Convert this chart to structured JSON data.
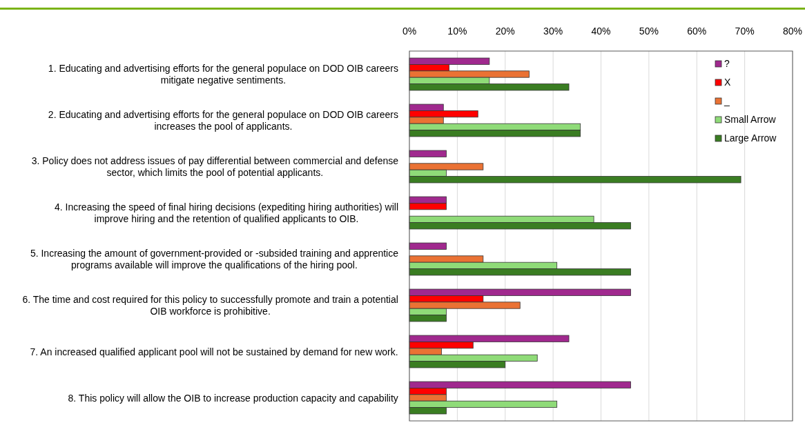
{
  "chart_data": {
    "type": "bar",
    "orientation": "horizontal",
    "categories": [
      "1. Educating and advertising efforts for the general populace on DOD OIB careers mitigate negative sentiments.",
      "2. Educating and advertising efforts for the general populace on DOD OIB careers increases the pool of applicants.",
      "3. Policy does not address issues of pay differential between commercial and defense sector, which limits the pool of potential applicants.",
      "4. Increasing the speed of final hiring decisions (expediting hiring authorities) will improve hiring and the retention of qualified applicants to OIB.",
      "5. Increasing the amount of government-provided or -subsided training and apprentice programs available will improve the qualifications of the hiring pool.",
      "6. The time and cost required for this policy to successfully promote and train a potential OIB workforce is prohibitive.",
      "7. An increased qualified applicant pool will not be sustained by demand for new work.",
      "8. This policy will allow the OIB to increase production capacity and capability"
    ],
    "series": [
      {
        "name": "?",
        "color": "#a0298e",
        "values": [
          16.7,
          7.1,
          7.7,
          7.7,
          7.7,
          46.2,
          33.3,
          46.2
        ]
      },
      {
        "name": "X",
        "color": "#ff0000",
        "values": [
          8.3,
          14.3,
          0,
          7.7,
          0,
          15.4,
          13.3,
          7.7
        ]
      },
      {
        "name": "_",
        "color": "#ea7234",
        "values": [
          25,
          7.1,
          15.4,
          0,
          15.4,
          23.1,
          6.7,
          7.7
        ]
      },
      {
        "name": "Small Arrow",
        "color": "#8fdb78",
        "values": [
          16.7,
          35.7,
          7.7,
          38.5,
          30.8,
          7.7,
          26.7,
          30.8
        ]
      },
      {
        "name": "Large Arrow",
        "color": "#3a7d22",
        "values": [
          33.3,
          35.7,
          69.2,
          46.2,
          46.2,
          7.7,
          20,
          7.7
        ]
      }
    ],
    "xlim": [
      0,
      80
    ],
    "xticks": [
      {
        "value": 0,
        "label": "0%"
      },
      {
        "value": 10,
        "label": "10%"
      },
      {
        "value": 20,
        "label": "20%"
      },
      {
        "value": 30,
        "label": "30%"
      },
      {
        "value": 40,
        "label": "40%"
      },
      {
        "value": 50,
        "label": "50%"
      },
      {
        "value": 60,
        "label": "60%"
      },
      {
        "value": 70,
        "label": "70%"
      },
      {
        "value": 80,
        "label": "80%"
      }
    ],
    "grid": "x",
    "legend": "top right"
  }
}
